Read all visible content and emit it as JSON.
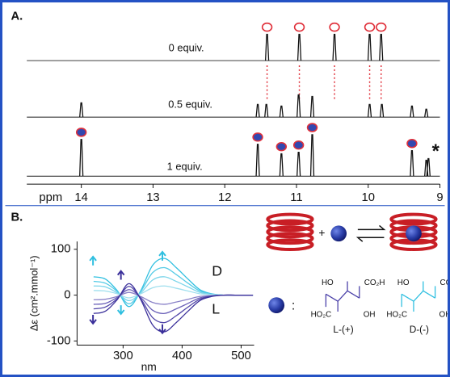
{
  "panel_a": {
    "label": "A.",
    "axis_label": "ppm",
    "xlim": [
      14.76,
      9.0
    ],
    "xticks": [
      14,
      13,
      12,
      11,
      10,
      9
    ],
    "traces": [
      {
        "label": "0 equiv.",
        "ppm": [
          11.41,
          10.96,
          10.47,
          9.98,
          9.82
        ],
        "intensity": [
          33,
          33,
          33,
          33,
          33
        ],
        "marker": "open",
        "circled": [
          true,
          true,
          true,
          true,
          true
        ]
      },
      {
        "label": "0.5 equiv.",
        "ppm": [
          14.0,
          11.54,
          11.42,
          11.21,
          10.97,
          10.78,
          9.98,
          9.81,
          9.39,
          9.19
        ],
        "intensity": [
          18,
          16,
          16,
          14,
          28,
          26,
          16,
          16,
          14,
          10
        ]
      },
      {
        "label": "1 equiv.",
        "ppm": [
          14.0,
          11.54,
          11.21,
          10.97,
          10.78,
          9.39,
          9.19,
          9.16
        ],
        "intensity": [
          46,
          40,
          28,
          30,
          52,
          32,
          20,
          22
        ],
        "marker": "filled",
        "circled": [
          true,
          true,
          true,
          true,
          true,
          true,
          false,
          false
        ],
        "asterisk": "*"
      }
    ]
  },
  "panel_b": {
    "label": "B.",
    "chart": {
      "type": "line",
      "x_label": "nm",
      "y_label": "Δε (cm².mmol⁻¹)",
      "x": [
        250,
        270,
        290,
        310,
        330,
        350,
        370,
        390,
        410,
        430,
        450,
        470,
        490,
        520
      ],
      "xlim": [
        222,
        522
      ],
      "xticks": [
        300,
        400,
        500
      ],
      "ylim": [
        -109,
        117
      ],
      "yticks": [
        100,
        0,
        -100
      ],
      "series": [
        {
          "color": "#2fbfe0",
          "values": [
            40,
            35,
            10,
            -25,
            10,
            65,
            80,
            60,
            35,
            12,
            3,
            0,
            0,
            0
          ]
        },
        {
          "color": "#55cbe6",
          "values": [
            30,
            26,
            8,
            -19,
            8,
            49,
            60,
            45,
            26,
            9,
            2,
            0,
            0,
            0
          ]
        },
        {
          "color": "#7bd5ea",
          "values": [
            20,
            18,
            5,
            -12,
            5,
            33,
            40,
            30,
            18,
            6,
            2,
            0,
            0,
            0
          ]
        },
        {
          "color": "#9fdfee",
          "values": [
            10,
            9,
            3,
            -6,
            3,
            16,
            20,
            15,
            9,
            3,
            1,
            0,
            0,
            0
          ]
        },
        {
          "color": "#8a82c8",
          "values": [
            -10,
            -9,
            -3,
            6,
            -3,
            -16,
            -20,
            -15,
            -9,
            -3,
            -1,
            0,
            0,
            0
          ]
        },
        {
          "color": "#6a60b8",
          "values": [
            -20,
            -18,
            -5,
            12,
            -5,
            -33,
            -40,
            -30,
            -18,
            -6,
            -2,
            0,
            0,
            0
          ]
        },
        {
          "color": "#5045a8",
          "values": [
            -30,
            -26,
            -8,
            19,
            -8,
            -49,
            -60,
            -45,
            -26,
            -9,
            -2,
            0,
            0,
            0
          ]
        },
        {
          "color": "#3a2f9a",
          "values": [
            -40,
            -35,
            -10,
            25,
            -10,
            -65,
            -80,
            -60,
            -35,
            -12,
            -3,
            0,
            0,
            0
          ]
        }
      ],
      "curve_labels": [
        {
          "text": "D",
          "color": "#2fbfe0"
        },
        {
          "text": "L",
          "color": "#3a2f9a"
        }
      ]
    },
    "scheme": {
      "plus": "+",
      "colon": ":",
      "l_tartaric": {
        "name": "L-(+)",
        "top_left": "HO",
        "top_right": "CO₂H",
        "bottom_left": "HO₂C",
        "bottom_right": "OH"
      },
      "d_tartaric": {
        "name": "D-(-)",
        "top_left": "HO",
        "top_right": "CO₂H",
        "bottom_left": "HO₂C",
        "bottom_right": "OH"
      }
    }
  }
}
